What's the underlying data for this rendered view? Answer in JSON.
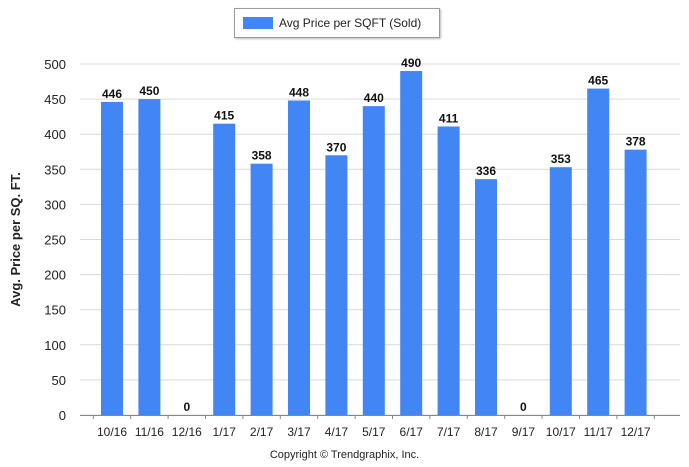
{
  "chart_data": {
    "type": "bar",
    "categories": [
      "10/16",
      "11/16",
      "12/16",
      "1/17",
      "2/17",
      "3/17",
      "4/17",
      "5/17",
      "6/17",
      "7/17",
      "8/17",
      "9/17",
      "10/17",
      "11/17",
      "12/17"
    ],
    "series": [
      {
        "name": "Avg Price per SQFT (Sold)",
        "values": [
          446,
          450,
          0,
          415,
          358,
          448,
          370,
          440,
          490,
          411,
          336,
          0,
          353,
          465,
          378
        ]
      }
    ],
    "ylabel": "Avg. Price per SQ. FT.",
    "xlabel": "",
    "ylim": [
      0,
      500
    ],
    "yticks": [
      0,
      50,
      100,
      150,
      200,
      250,
      300,
      350,
      400,
      450,
      500
    ],
    "grid": true,
    "data_labels": true,
    "legend_position": "top-center",
    "bar_color": "#4285f4"
  },
  "footer": {
    "copyright": "Copyright © Trendgraphix, Inc."
  }
}
